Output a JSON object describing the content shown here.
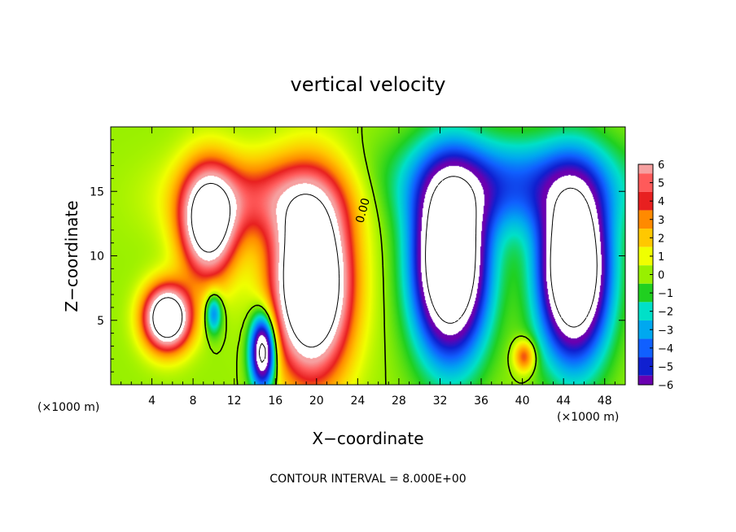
{
  "chart_data": {
    "type": "heatmap",
    "title": "vertical velocity",
    "xlabel": "X−coordinate",
    "ylabel": "Z−coordinate",
    "x_unit_left": "(×1000 m)",
    "x_unit_right": "(×1000 m)",
    "footer": "CONTOUR INTERVAL = 8.000E+00",
    "zero_contour_label": "0.00",
    "xlim": [
      0,
      50
    ],
    "ylim": [
      0,
      20
    ],
    "x_ticks": [
      4,
      8,
      12,
      16,
      20,
      24,
      28,
      32,
      36,
      40,
      44,
      48
    ],
    "x_tick_labels": [
      "4",
      "8",
      "12",
      "16",
      "20",
      "24",
      "28",
      "32",
      "36",
      "40",
      "44",
      "48"
    ],
    "y_ticks": [
      5,
      10,
      15
    ],
    "y_tick_labels": [
      "5",
      "10",
      "15"
    ],
    "colorbar": {
      "levels": [
        6,
        5,
        4,
        3,
        2,
        1,
        0,
        -1,
        -2,
        -3,
        -4,
        -5,
        -6
      ],
      "labels": [
        "6",
        "5",
        "4",
        "3",
        "2",
        "1",
        "0",
        "−1",
        "−2",
        "−3",
        "−4",
        "−5",
        "−6"
      ],
      "colors": [
        "#f6a0a0",
        "#ff5a5a",
        "#e82020",
        "#ff8a00",
        "#ffc800",
        "#f0ff00",
        "#98f000",
        "#20d020",
        "#00e0c8",
        "#00a8f0",
        "#1060ff",
        "#1020d0",
        "#6a00b0"
      ]
    },
    "features": [
      {
        "kind": "updraft",
        "cx": 5.5,
        "cz": 5.2,
        "rx": 2.2,
        "rz": 2.4,
        "peak": 12
      },
      {
        "kind": "updraft",
        "cx": 9.5,
        "cz": 12.5,
        "rx": 2.6,
        "rz": 4.2,
        "peak": 10
      },
      {
        "kind": "updraft",
        "cx": 19.5,
        "cz": 8.0,
        "rx": 3.6,
        "rz": 6.8,
        "peak": 14
      },
      {
        "kind": "updraft",
        "cx": 15.0,
        "cz": 14.5,
        "rx": 8.0,
        "rz": 3.2,
        "peak": 4
      },
      {
        "kind": "updraft",
        "cx": 40.2,
        "cz": 2.2,
        "rx": 1.0,
        "rz": 1.2,
        "peak": 4
      },
      {
        "kind": "downdraft",
        "cx": 14.8,
        "cz": 2.6,
        "rx": 1.2,
        "rz": 2.8,
        "peak": -10
      },
      {
        "kind": "downdraft",
        "cx": 10.0,
        "cz": 5.6,
        "rx": 0.8,
        "rz": 1.6,
        "peak": -4
      },
      {
        "kind": "downdraft",
        "cx": 33.0,
        "cz": 9.5,
        "rx": 3.4,
        "rz": 6.8,
        "peak": -13
      },
      {
        "kind": "downdraft",
        "cx": 45.0,
        "cz": 9.0,
        "rx": 3.2,
        "rz": 6.5,
        "peak": -13
      },
      {
        "kind": "downdraft",
        "cx": 38.5,
        "cz": 15.5,
        "rx": 11.0,
        "rz": 3.5,
        "peak": -4
      }
    ]
  }
}
